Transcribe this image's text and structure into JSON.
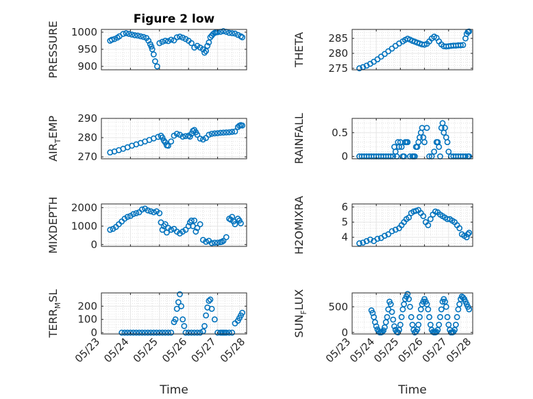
{
  "figure": {
    "background": "#ffffff",
    "marker_color": "#0072BD",
    "grid_color": "#d9d9d9",
    "axis_color": "#262626"
  },
  "chart_data": [
    {
      "id": "pressure",
      "type": "scatter",
      "title": "Figure 2 low",
      "ylabel": "PRESSURE",
      "ylabel_sub": "",
      "ylabel_end": "",
      "xlim": [
        0,
        5
      ],
      "ylim": [
        890,
        1008
      ],
      "yticks": [
        900,
        950,
        1000
      ],
      "xticklabels": [],
      "xlabel": "",
      "grid": true,
      "x": [
        0.3,
        0.36,
        0.45,
        0.55,
        0.62,
        0.75,
        0.85,
        0.95,
        1.05,
        1.15,
        1.25,
        1.35,
        1.45,
        1.55,
        1.62,
        1.68,
        1.72,
        1.75,
        1.8,
        1.85,
        1.92,
        2.0,
        2.1,
        2.2,
        2.3,
        2.4,
        2.5,
        2.6,
        2.7,
        2.8,
        2.9,
        3.0,
        3.1,
        3.2,
        3.3,
        3.4,
        3.5,
        3.55,
        3.6,
        3.65,
        3.7,
        3.75,
        3.8,
        3.85,
        3.9,
        3.95,
        4.0,
        4.1,
        4.2,
        4.3,
        4.4,
        4.5,
        4.6,
        4.7,
        4.8,
        4.85
      ],
      "y": [
        975,
        978,
        980,
        984,
        988,
        995,
        997,
        995,
        993,
        991,
        990,
        988,
        986,
        983,
        975,
        965,
        958,
        950,
        935,
        915,
        900,
        968,
        972,
        975,
        974,
        978,
        976,
        985,
        987,
        984,
        980,
        975,
        968,
        955,
        960,
        955,
        950,
        940,
        945,
        960,
        970,
        985,
        990,
        995,
        998,
        1000,
        1000,
        1001,
        1003,
        1001,
        998,
        997,
        996,
        992,
        988,
        985
      ]
    },
    {
      "id": "theta",
      "type": "scatter",
      "title": "",
      "ylabel": "THETA",
      "ylabel_sub": "",
      "ylabel_end": "",
      "xlim": [
        0,
        5
      ],
      "ylim": [
        274.5,
        288
      ],
      "yticks": [
        275,
        280,
        285
      ],
      "xticklabels": [],
      "xlabel": "",
      "grid": true,
      "x": [
        0.3,
        0.45,
        0.6,
        0.75,
        0.9,
        1.05,
        1.2,
        1.35,
        1.5,
        1.65,
        1.8,
        1.95,
        2.1,
        2.2,
        2.3,
        2.4,
        2.5,
        2.6,
        2.7,
        2.8,
        2.9,
        3.0,
        3.1,
        3.2,
        3.3,
        3.4,
        3.5,
        3.6,
        3.7,
        3.8,
        3.9,
        4.0,
        4.1,
        4.2,
        4.3,
        4.4,
        4.5,
        4.6,
        4.7,
        4.75,
        4.8,
        4.85
      ],
      "y": [
        275.0,
        275.4,
        275.9,
        276.5,
        277.2,
        278.0,
        278.9,
        279.8,
        280.7,
        281.6,
        282.5,
        283.3,
        284.0,
        284.5,
        284.9,
        284.6,
        284.2,
        283.9,
        283.6,
        283.3,
        283.0,
        282.9,
        283.2,
        284.0,
        285.0,
        285.6,
        285.2,
        284.0,
        283.0,
        282.4,
        282.3,
        282.4,
        282.5,
        282.6,
        282.6,
        282.7,
        282.7,
        282.8,
        285.0,
        286.5,
        287.2,
        287.3
      ]
    },
    {
      "id": "airtemp",
      "type": "scatter",
      "title": "",
      "ylabel": "AIR",
      "ylabel_sub": "T",
      "ylabel_end": "EMP",
      "xlim": [
        0,
        5
      ],
      "ylim": [
        269,
        290
      ],
      "yticks": [
        270,
        280,
        290
      ],
      "xticklabels": [],
      "xlabel": "",
      "grid": true,
      "x": [
        0.3,
        0.45,
        0.6,
        0.75,
        0.9,
        1.05,
        1.2,
        1.35,
        1.5,
        1.65,
        1.8,
        1.95,
        2.05,
        2.1,
        2.15,
        2.2,
        2.25,
        2.3,
        2.4,
        2.5,
        2.6,
        2.7,
        2.8,
        2.9,
        3.0,
        3.05,
        3.1,
        3.15,
        3.2,
        3.25,
        3.3,
        3.4,
        3.5,
        3.6,
        3.7,
        3.8,
        3.9,
        4.0,
        4.1,
        4.2,
        4.3,
        4.4,
        4.5,
        4.6,
        4.7,
        4.75,
        4.8,
        4.85
      ],
      "y": [
        272.3,
        272.8,
        273.5,
        274.2,
        275.0,
        275.8,
        276.5,
        277.2,
        278.0,
        278.8,
        279.6,
        280.4,
        281.0,
        280.0,
        278.5,
        277.5,
        276.0,
        275.8,
        278.0,
        281.0,
        282.0,
        281.5,
        280.5,
        280.8,
        281.0,
        280.5,
        282.0,
        283.5,
        284.0,
        282.8,
        281.5,
        279.5,
        279.0,
        279.8,
        281.5,
        282.0,
        282.2,
        282.3,
        282.5,
        282.6,
        282.7,
        282.8,
        283.0,
        283.2,
        285.5,
        286.2,
        286.5,
        286.3
      ]
    },
    {
      "id": "rainfall",
      "type": "scatter",
      "title": "",
      "ylabel": "RAINFALL",
      "ylabel_sub": "",
      "ylabel_end": "",
      "xlim": [
        0,
        5
      ],
      "ylim": [
        -0.05,
        0.8
      ],
      "yticks": [
        0,
        0.5
      ],
      "xticklabels": [],
      "xlabel": "",
      "grid": true,
      "x": [
        0.3,
        0.4,
        0.5,
        0.6,
        0.7,
        0.8,
        0.9,
        1.0,
        1.1,
        1.2,
        1.3,
        1.4,
        1.5,
        1.6,
        1.7,
        1.75,
        1.8,
        1.85,
        1.9,
        1.95,
        2.0,
        2.05,
        2.1,
        2.15,
        2.2,
        2.25,
        2.3,
        2.4,
        2.5,
        2.55,
        2.6,
        2.65,
        2.7,
        2.75,
        2.8,
        2.85,
        2.9,
        2.95,
        3.0,
        3.1,
        3.2,
        3.3,
        3.4,
        3.5,
        3.55,
        3.6,
        3.65,
        3.7,
        3.75,
        3.8,
        3.85,
        3.9,
        3.95,
        4.0,
        4.1,
        4.2,
        4.3,
        4.4,
        4.5,
        4.6,
        4.7,
        4.8,
        4.85
      ],
      "y": [
        0,
        0,
        0,
        0,
        0,
        0,
        0,
        0,
        0,
        0,
        0,
        0,
        0,
        0,
        0,
        0.2,
        0.1,
        0,
        0.3,
        0.2,
        0.3,
        0.2,
        0,
        0,
        0.3,
        0.3,
        0.3,
        0,
        0,
        0,
        0,
        0.2,
        0.2,
        0.3,
        0.4,
        0.5,
        0.6,
        0.4,
        0.3,
        0.6,
        0,
        0,
        0.1,
        0.3,
        0.3,
        0.2,
        0,
        0.6,
        0.7,
        0.5,
        0.6,
        0.4,
        0.3,
        0.1,
        0,
        0,
        0,
        0,
        0,
        0,
        0,
        0,
        0
      ]
    },
    {
      "id": "mixdepth",
      "type": "scatter",
      "title": "",
      "ylabel": "MIXDEPTH",
      "ylabel_sub": "",
      "ylabel_end": "",
      "xlim": [
        0,
        5
      ],
      "ylim": [
        -100,
        2200
      ],
      "yticks": [
        0,
        1000,
        2000
      ],
      "xticklabels": [],
      "xlabel": "",
      "grid": true,
      "x": [
        0.3,
        0.4,
        0.5,
        0.6,
        0.7,
        0.8,
        0.9,
        1.0,
        1.1,
        1.2,
        1.3,
        1.4,
        1.5,
        1.6,
        1.7,
        1.8,
        1.9,
        2.0,
        2.05,
        2.1,
        2.15,
        2.2,
        2.25,
        2.3,
        2.4,
        2.5,
        2.6,
        2.7,
        2.8,
        2.9,
        3.0,
        3.05,
        3.1,
        3.15,
        3.2,
        3.25,
        3.3,
        3.4,
        3.5,
        3.6,
        3.7,
        3.8,
        3.9,
        4.0,
        4.1,
        4.15,
        4.2,
        4.3,
        4.4,
        4.45,
        4.5,
        4.55,
        4.6,
        4.7,
        4.75,
        4.8
      ],
      "y": [
        800,
        850,
        950,
        1100,
        1250,
        1400,
        1500,
        1550,
        1650,
        1700,
        1750,
        1900,
        1950,
        1850,
        1800,
        1750,
        1800,
        1700,
        1200,
        800,
        1000,
        1100,
        650,
        900,
        800,
        850,
        700,
        600,
        700,
        800,
        1000,
        1200,
        1300,
        1000,
        1300,
        700,
        900,
        1100,
        250,
        150,
        200,
        80,
        100,
        100,
        130,
        150,
        200,
        400,
        1400,
        1350,
        1500,
        1250,
        1100,
        1400,
        1300,
        1150
      ]
    },
    {
      "id": "h2omixra",
      "type": "scatter",
      "title": "",
      "ylabel": "H2OMIXRA",
      "ylabel_sub": "",
      "ylabel_end": "",
      "xlim": [
        0,
        5
      ],
      "ylim": [
        3.4,
        6.2
      ],
      "yticks": [
        4,
        5,
        6
      ],
      "xticklabels": [],
      "xlabel": "",
      "grid": true,
      "x": [
        0.3,
        0.45,
        0.6,
        0.75,
        0.9,
        1.05,
        1.2,
        1.35,
        1.5,
        1.65,
        1.8,
        1.95,
        2.05,
        2.15,
        2.25,
        2.35,
        2.45,
        2.55,
        2.65,
        2.75,
        2.85,
        2.95,
        3.05,
        3.15,
        3.25,
        3.35,
        3.45,
        3.55,
        3.65,
        3.75,
        3.85,
        3.95,
        4.05,
        4.15,
        4.25,
        4.35,
        4.45,
        4.55,
        4.65,
        4.75,
        4.8,
        4.85
      ],
      "y": [
        3.6,
        3.65,
        3.75,
        3.85,
        3.75,
        3.9,
        3.95,
        4.1,
        4.2,
        4.4,
        4.5,
        4.6,
        4.8,
        5.0,
        5.2,
        5.3,
        5.6,
        5.7,
        5.75,
        5.8,
        5.6,
        5.4,
        5.0,
        4.8,
        5.2,
        5.5,
        5.7,
        5.65,
        5.5,
        5.4,
        5.3,
        5.2,
        5.2,
        5.1,
        5.0,
        4.8,
        4.6,
        4.2,
        4.1,
        4.0,
        4.2,
        4.3
      ]
    },
    {
      "id": "terrmsl",
      "type": "scatter",
      "title": "",
      "ylabel": "TERR",
      "ylabel_sub": "M",
      "ylabel_end": "SL",
      "xlim": [
        0,
        5
      ],
      "ylim": [
        -10,
        300
      ],
      "yticks": [
        0,
        100,
        200
      ],
      "xticklabels": [
        "05/23",
        "05/24",
        "05/25",
        "05/26",
        "05/27",
        "05/28"
      ],
      "xlabel": "Time",
      "grid": true,
      "x": [
        0.7,
        0.8,
        0.9,
        1.0,
        1.1,
        1.2,
        1.3,
        1.4,
        1.5,
        1.6,
        1.7,
        1.8,
        1.9,
        2.0,
        2.1,
        2.2,
        2.3,
        2.4,
        2.5,
        2.55,
        2.6,
        2.65,
        2.7,
        2.75,
        2.8,
        2.85,
        2.9,
        3.0,
        3.1,
        3.2,
        3.3,
        3.4,
        3.5,
        3.55,
        3.6,
        3.65,
        3.7,
        3.75,
        3.8,
        3.9,
        4.0,
        4.1,
        4.15,
        4.2,
        4.25,
        4.3,
        4.4,
        4.5,
        4.6,
        4.7,
        4.75,
        4.8,
        4.85
      ],
      "y": [
        0,
        0,
        0,
        0,
        0,
        0,
        0,
        0,
        0,
        0,
        0,
        0,
        0,
        0,
        0,
        0,
        0,
        0,
        80,
        100,
        180,
        230,
        290,
        200,
        100,
        50,
        0,
        0,
        0,
        0,
        0,
        0,
        10,
        50,
        130,
        190,
        240,
        250,
        180,
        100,
        0,
        0,
        0,
        0,
        0,
        0,
        0,
        0,
        70,
        90,
        110,
        130,
        150
      ]
    },
    {
      "id": "sunflux",
      "type": "scatter",
      "title": "",
      "ylabel": "SUN",
      "ylabel_sub": "F",
      "ylabel_end": "LUX",
      "xlim": [
        0,
        5
      ],
      "ylim": [
        -30,
        770
      ],
      "yticks": [
        0,
        500
      ],
      "xticklabels": [
        "05/23",
        "05/24",
        "05/25",
        "05/26",
        "05/27",
        "05/28"
      ],
      "xlabel": "Time",
      "grid": true,
      "x": [
        0.8,
        0.85,
        0.9,
        0.95,
        1.0,
        1.05,
        1.1,
        1.15,
        1.2,
        1.25,
        1.3,
        1.35,
        1.4,
        1.45,
        1.5,
        1.55,
        1.6,
        1.65,
        1.7,
        1.75,
        1.8,
        1.85,
        1.9,
        1.95,
        2.0,
        2.05,
        2.1,
        2.15,
        2.2,
        2.25,
        2.3,
        2.35,
        2.4,
        2.45,
        2.5,
        2.55,
        2.6,
        2.65,
        2.7,
        2.75,
        2.8,
        2.85,
        2.9,
        2.95,
        3.0,
        3.05,
        3.1,
        3.15,
        3.2,
        3.25,
        3.3,
        3.35,
        3.4,
        3.45,
        3.5,
        3.55,
        3.6,
        3.65,
        3.7,
        3.75,
        3.8,
        3.85,
        3.9,
        3.95,
        4.0,
        4.05,
        4.1,
        4.15,
        4.2,
        4.25,
        4.3,
        4.35,
        4.4,
        4.45,
        4.5,
        4.55,
        4.6,
        4.65,
        4.7,
        4.75,
        4.8,
        4.85
      ],
      "y": [
        430,
        380,
        300,
        200,
        120,
        60,
        20,
        0,
        0,
        10,
        40,
        100,
        200,
        300,
        450,
        600,
        550,
        400,
        250,
        120,
        50,
        10,
        0,
        50,
        150,
        300,
        450,
        550,
        650,
        700,
        750,
        650,
        500,
        300,
        150,
        50,
        0,
        20,
        60,
        150,
        300,
        450,
        550,
        600,
        650,
        600,
        550,
        450,
        300,
        150,
        50,
        10,
        0,
        0,
        10,
        50,
        150,
        300,
        450,
        600,
        650,
        600,
        500,
        300,
        150,
        50,
        0,
        0,
        10,
        50,
        150,
        300,
        450,
        550,
        650,
        700,
        680,
        650,
        600,
        550,
        500,
        450
      ]
    }
  ]
}
